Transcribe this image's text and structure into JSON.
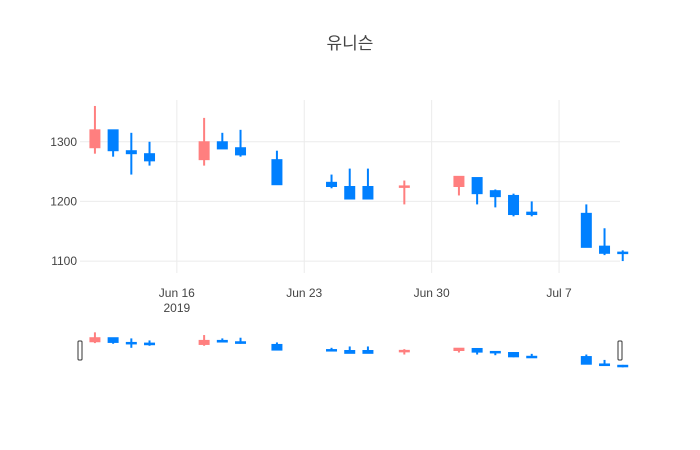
{
  "chart_data": {
    "type": "candlestick",
    "title": "유니슨",
    "ylim": [
      1080,
      1370
    ],
    "y_ticks": [
      1100,
      1200,
      1300
    ],
    "x_ticks": [
      {
        "date": "2019-06-16",
        "label": "Jun 16",
        "sublabel": "2019"
      },
      {
        "date": "2019-06-23",
        "label": "Jun 23",
        "sublabel": ""
      },
      {
        "date": "2019-06-30",
        "label": "Jun 30",
        "sublabel": ""
      },
      {
        "date": "2019-07-07",
        "label": "Jul 7",
        "sublabel": ""
      }
    ],
    "increasing_color": "#ff7f7f",
    "decreasing_color": "#0080ff",
    "range_slider": true,
    "candles": [
      {
        "date": "2019-06-11",
        "open": 1290,
        "high": 1360,
        "low": 1280,
        "close": 1320
      },
      {
        "date": "2019-06-12",
        "open": 1320,
        "high": 1320,
        "low": 1275,
        "close": 1285
      },
      {
        "date": "2019-06-13",
        "open": 1285,
        "high": 1315,
        "low": 1245,
        "close": 1280
      },
      {
        "date": "2019-06-14",
        "open": 1280,
        "high": 1300,
        "low": 1260,
        "close": 1268
      },
      {
        "date": "2019-06-17",
        "open": 1270,
        "high": 1340,
        "low": 1260,
        "close": 1300
      },
      {
        "date": "2019-06-18",
        "open": 1300,
        "high": 1315,
        "low": 1288,
        "close": 1288
      },
      {
        "date": "2019-06-19",
        "open": 1290,
        "high": 1320,
        "low": 1275,
        "close": 1278
      },
      {
        "date": "2019-06-21",
        "open": 1270,
        "high": 1285,
        "low": 1228,
        "close": 1228
      },
      {
        "date": "2019-06-24",
        "open": 1232,
        "high": 1245,
        "low": 1222,
        "close": 1225
      },
      {
        "date": "2019-06-25",
        "open": 1225,
        "high": 1255,
        "low": 1204,
        "close": 1204
      },
      {
        "date": "2019-06-26",
        "open": 1225,
        "high": 1255,
        "low": 1204,
        "close": 1204
      },
      {
        "date": "2019-06-28",
        "open": 1224,
        "high": 1235,
        "low": 1195,
        "close": 1226
      },
      {
        "date": "2019-07-01",
        "open": 1225,
        "high": 1242,
        "low": 1210,
        "close": 1242
      },
      {
        "date": "2019-07-02",
        "open": 1240,
        "high": 1240,
        "low": 1195,
        "close": 1213
      },
      {
        "date": "2019-07-03",
        "open": 1218,
        "high": 1220,
        "low": 1190,
        "close": 1208
      },
      {
        "date": "2019-07-04",
        "open": 1210,
        "high": 1213,
        "low": 1175,
        "close": 1178
      },
      {
        "date": "2019-07-05",
        "open": 1182,
        "high": 1200,
        "low": 1175,
        "close": 1178
      },
      {
        "date": "2019-07-08",
        "open": 1180,
        "high": 1195,
        "low": 1123,
        "close": 1123
      },
      {
        "date": "2019-07-09",
        "open": 1125,
        "high": 1155,
        "low": 1110,
        "close": 1113
      },
      {
        "date": "2019-07-10",
        "open": 1115,
        "high": 1118,
        "low": 1100,
        "close": 1113
      }
    ]
  }
}
